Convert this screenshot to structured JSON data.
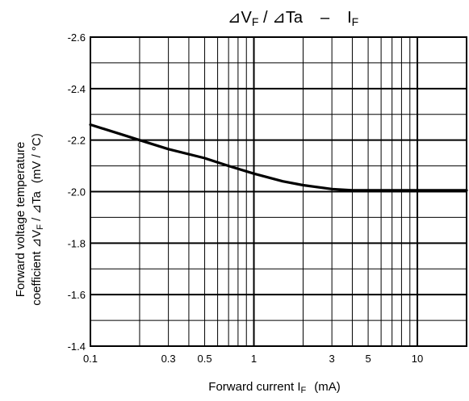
{
  "chart_data": {
    "type": "line",
    "title": {
      "main": "⊿V",
      "main_sub": "F",
      "mid": " / ⊿Ta",
      "sep": "–",
      "right": "I",
      "right_sub": "F"
    },
    "xlabel": {
      "main": "Forward current I",
      "sub": "F",
      "unit": "(mA)"
    },
    "ylabel": {
      "line1": "Forward voltage temperature",
      "line2_prefix": "coefficient ⊿V",
      "line2_sub": "F",
      "line2_mid": " / ⊿Ta",
      "unit": "(mV / °C)"
    },
    "x_scale": "log",
    "xlim": [
      0.1,
      20
    ],
    "ylim": [
      -2.6,
      -1.4
    ],
    "y_reversed": true,
    "grid": true,
    "x_ticks": [
      {
        "value": 0.1,
        "label": "0.1"
      },
      {
        "value": 0.3,
        "label": "0.3"
      },
      {
        "value": 0.5,
        "label": "0.5"
      },
      {
        "value": 1,
        "label": "1"
      },
      {
        "value": 3,
        "label": "3"
      },
      {
        "value": 5,
        "label": "5"
      },
      {
        "value": 10,
        "label": "10"
      }
    ],
    "y_ticks": [
      {
        "value": -2.6,
        "label": "-2.6"
      },
      {
        "value": -2.4,
        "label": "-2.4"
      },
      {
        "value": -2.2,
        "label": "-2.2"
      },
      {
        "value": -2.0,
        "label": "-2.0"
      },
      {
        "value": -1.8,
        "label": "-1.8"
      },
      {
        "value": -1.6,
        "label": "-1.6"
      },
      {
        "value": -1.4,
        "label": "-1.4"
      }
    ],
    "series": [
      {
        "x": [
          0.1,
          0.15,
          0.2,
          0.3,
          0.5,
          0.7,
          1,
          1.5,
          2,
          3,
          4,
          5,
          7,
          10,
          15,
          20
        ],
        "y": [
          -2.26,
          -2.225,
          -2.2,
          -2.165,
          -2.13,
          -2.1,
          -2.07,
          -2.04,
          -2.025,
          -2.01,
          -2.005,
          -2.005,
          -2.005,
          -2.005,
          -2.005,
          -2.005
        ]
      }
    ],
    "line_color": "#000000"
  }
}
